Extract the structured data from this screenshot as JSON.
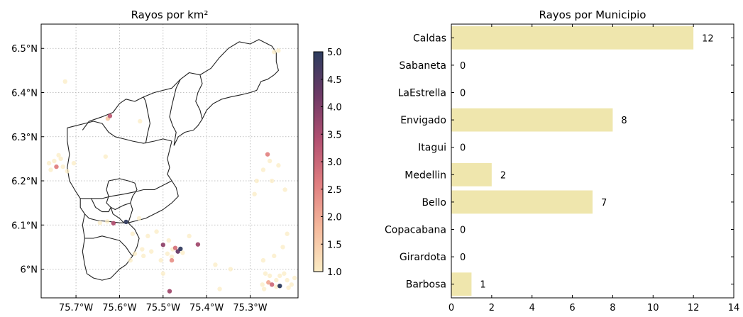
{
  "chart_data": [
    {
      "type": "scatter",
      "title": "Rayos por km²",
      "xlim": [
        -75.78,
        -75.19
      ],
      "ylim": [
        5.935,
        6.555
      ],
      "x_ticks": [
        {
          "value": -75.7,
          "label": "75.7°W"
        },
        {
          "value": -75.6,
          "label": "75.6°W"
        },
        {
          "value": -75.5,
          "label": "75.5°W"
        },
        {
          "value": -75.4,
          "label": "75.4°W"
        },
        {
          "value": -75.3,
          "label": "75.3°W"
        }
      ],
      "y_ticks": [
        {
          "value": 6.0,
          "label": "6°N"
        },
        {
          "value": 6.1,
          "label": "6.1°N"
        },
        {
          "value": 6.2,
          "label": "6.2°N"
        },
        {
          "value": 6.3,
          "label": "6.3°N"
        },
        {
          "value": 6.4,
          "label": "6.4°N"
        },
        {
          "value": 6.5,
          "label": "6.5°N"
        }
      ],
      "grid": true,
      "colorbar": {
        "min": 1.0,
        "max": 5.0,
        "ticks": [
          "1.0",
          "1.5",
          "2.0",
          "2.5",
          "3.0",
          "3.5",
          "4.0",
          "4.5",
          "5.0"
        ],
        "colors": [
          "#fbecc4",
          "#f5b99c",
          "#e07e80",
          "#b25071",
          "#6e3a66",
          "#2c3c5e"
        ]
      },
      "outline_color": "#222222",
      "points": [
        {
          "lon": -75.725,
          "lat": 6.425,
          "v": 1
        },
        {
          "lon": -75.622,
          "lat": 6.347,
          "v": 3.2
        },
        {
          "lon": -75.627,
          "lat": 6.341,
          "v": 1.5
        },
        {
          "lon": -75.553,
          "lat": 6.335,
          "v": 1
        },
        {
          "lon": -75.762,
          "lat": 6.24,
          "v": 1
        },
        {
          "lon": -75.75,
          "lat": 6.245,
          "v": 1
        },
        {
          "lon": -75.745,
          "lat": 6.232,
          "v": 2.6
        },
        {
          "lon": -75.735,
          "lat": 6.25,
          "v": 1
        },
        {
          "lon": -75.73,
          "lat": 6.232,
          "v": 1
        },
        {
          "lon": -75.72,
          "lat": 6.222,
          "v": 1
        },
        {
          "lon": -75.705,
          "lat": 6.24,
          "v": 1
        },
        {
          "lon": -75.758,
          "lat": 6.225,
          "v": 1
        },
        {
          "lon": -75.632,
          "lat": 6.255,
          "v": 1
        },
        {
          "lon": -75.645,
          "lat": 6.105,
          "v": 1
        },
        {
          "lon": -75.628,
          "lat": 6.108,
          "v": 1
        },
        {
          "lon": -75.614,
          "lat": 6.104,
          "v": 3.4
        },
        {
          "lon": -75.585,
          "lat": 6.107,
          "v": 4.9
        },
        {
          "lon": -75.57,
          "lat": 6.08,
          "v": 1
        },
        {
          "lon": -75.555,
          "lat": 6.115,
          "v": 1
        },
        {
          "lon": -75.535,
          "lat": 6.075,
          "v": 1
        },
        {
          "lon": -75.515,
          "lat": 6.085,
          "v": 1
        },
        {
          "lon": -75.548,
          "lat": 6.045,
          "v": 1
        },
        {
          "lon": -75.565,
          "lat": 6.035,
          "v": 1
        },
        {
          "lon": -75.575,
          "lat": 6.02,
          "v": 1
        },
        {
          "lon": -75.545,
          "lat": 6.03,
          "v": 1
        },
        {
          "lon": -75.527,
          "lat": 6.04,
          "v": 1
        },
        {
          "lon": -75.5,
          "lat": 6.055,
          "v": 3.8
        },
        {
          "lon": -75.487,
          "lat": 6.065,
          "v": 1
        },
        {
          "lon": -75.49,
          "lat": 6.035,
          "v": 1
        },
        {
          "lon": -75.478,
          "lat": 6.045,
          "v": 1
        },
        {
          "lon": -75.472,
          "lat": 6.048,
          "v": 2.8
        },
        {
          "lon": -75.466,
          "lat": 6.04,
          "v": 4.3
        },
        {
          "lon": -75.46,
          "lat": 6.046,
          "v": 4.9
        },
        {
          "lon": -75.455,
          "lat": 6.037,
          "v": 1
        },
        {
          "lon": -75.42,
          "lat": 6.056,
          "v": 3.6
        },
        {
          "lon": -75.44,
          "lat": 6.075,
          "v": 1
        },
        {
          "lon": -75.48,
          "lat": 6.028,
          "v": 1
        },
        {
          "lon": -75.48,
          "lat": 6.02,
          "v": 2.3
        },
        {
          "lon": -75.505,
          "lat": 6.02,
          "v": 1
        },
        {
          "lon": -75.485,
          "lat": 5.95,
          "v": 3.6
        },
        {
          "lon": -75.5,
          "lat": 5.99,
          "v": 1
        },
        {
          "lon": -75.38,
          "lat": 6.01,
          "v": 1
        },
        {
          "lon": -75.37,
          "lat": 5.955,
          "v": 1
        },
        {
          "lon": -75.345,
          "lat": 6.0,
          "v": 1
        },
        {
          "lon": -75.26,
          "lat": 6.26,
          "v": 2.5
        },
        {
          "lon": -75.255,
          "lat": 6.245,
          "v": 1
        },
        {
          "lon": -75.235,
          "lat": 6.235,
          "v": 1
        },
        {
          "lon": -75.27,
          "lat": 6.225,
          "v": 1
        },
        {
          "lon": -75.285,
          "lat": 6.2,
          "v": 1
        },
        {
          "lon": -75.25,
          "lat": 6.2,
          "v": 1
        },
        {
          "lon": -75.22,
          "lat": 6.18,
          "v": 1
        },
        {
          "lon": -75.29,
          "lat": 6.17,
          "v": 1
        },
        {
          "lon": -75.215,
          "lat": 6.08,
          "v": 1
        },
        {
          "lon": -75.245,
          "lat": 6.03,
          "v": 1
        },
        {
          "lon": -75.225,
          "lat": 6.05,
          "v": 1
        },
        {
          "lon": -75.27,
          "lat": 6.02,
          "v": 1
        },
        {
          "lon": -75.265,
          "lat": 5.99,
          "v": 1
        },
        {
          "lon": -75.255,
          "lat": 5.985,
          "v": 1
        },
        {
          "lon": -75.24,
          "lat": 5.975,
          "v": 1
        },
        {
          "lon": -75.232,
          "lat": 5.985,
          "v": 1
        },
        {
          "lon": -75.222,
          "lat": 5.99,
          "v": 1
        },
        {
          "lon": -75.215,
          "lat": 5.975,
          "v": 1
        },
        {
          "lon": -75.205,
          "lat": 5.965,
          "v": 1
        },
        {
          "lon": -75.198,
          "lat": 5.98,
          "v": 1
        },
        {
          "lon": -75.272,
          "lat": 5.965,
          "v": 1
        },
        {
          "lon": -75.268,
          "lat": 5.955,
          "v": 1
        },
        {
          "lon": -75.258,
          "lat": 5.97,
          "v": 2
        },
        {
          "lon": -75.25,
          "lat": 5.965,
          "v": 2.9
        },
        {
          "lon": -75.24,
          "lat": 5.96,
          "v": 1
        },
        {
          "lon": -75.232,
          "lat": 5.962,
          "v": 5
        },
        {
          "lon": -75.212,
          "lat": 5.958,
          "v": 1
        },
        {
          "lon": -75.245,
          "lat": 6.492,
          "v": 1
        },
        {
          "lon": -75.235,
          "lat": 6.495,
          "v": 1
        },
        {
          "lon": -75.74,
          "lat": 6.258,
          "v": 1
        }
      ]
    },
    {
      "type": "bar",
      "orientation": "horizontal",
      "title": "Rayos por Municipio",
      "categories": [
        "Caldas",
        "Sabaneta",
        "LaEstrella",
        "Envigado",
        "Itagui",
        "Medellin",
        "Bello",
        "Copacabana",
        "Girardota",
        "Barbosa"
      ],
      "values": [
        12,
        0,
        0,
        8,
        0,
        2,
        7,
        0,
        0,
        1
      ],
      "value_labels": [
        "12",
        "0",
        "0",
        "8",
        "0",
        "2",
        "7",
        "0",
        "0",
        "1"
      ],
      "xlim": [
        0,
        14
      ],
      "x_ticks": [
        "0",
        "2",
        "4",
        "6",
        "8",
        "10",
        "12",
        "14"
      ],
      "bar_color": "#efe6ad",
      "grid": false
    }
  ]
}
